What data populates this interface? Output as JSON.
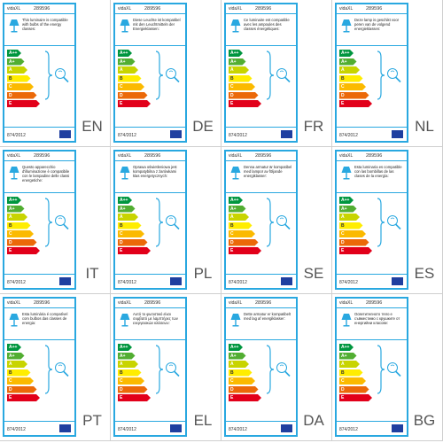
{
  "brand": "vidaXL",
  "product_code": "289596",
  "regulation": "874/2012",
  "icons": {
    "lamp": "table-lamp-icon",
    "bulb": "light-bulb-icon",
    "flag": "eu-flag-icon"
  },
  "energy_classes": [
    {
      "label": "A++",
      "color": "#00963f"
    },
    {
      "label": "A+",
      "color": "#52ae32"
    },
    {
      "label": "A",
      "color": "#c8d400"
    },
    {
      "label": "B",
      "color": "#ffed00"
    },
    {
      "label": "C",
      "color": "#fbba00"
    },
    {
      "label": "D",
      "color": "#eb6909"
    },
    {
      "label": "E",
      "color": "#e2001a"
    }
  ],
  "labels": [
    {
      "lang": "EN",
      "text": "This luminaire is compatible with bulbs of the energy classes:"
    },
    {
      "lang": "DE",
      "text": "Diese Leuchte ist kompatibel mit den Leuchtmitteln der Energieklassen:"
    },
    {
      "lang": "FR",
      "text": "Ce luminaire est compatible avec les ampoules des classes énergétiques:"
    },
    {
      "lang": "NL",
      "text": "Deze lamp is geschikt voor peren van de volgend energieklassen:"
    },
    {
      "lang": "IT",
      "text": "Questo apparecchio d'illuminazione è compatibile con le lampadine delle classi energetiche:"
    },
    {
      "lang": "PL",
      "text": "Oprawa oświetleniowa jest kompatybilna z żarówkami klas energetycznych:"
    },
    {
      "lang": "SE",
      "text": "Denna armatur är kompatibel med lampor av följande energiklasser:"
    },
    {
      "lang": "ES",
      "text": "Esta luminaria es compatible con las bombillas de las clases de la energía:"
    },
    {
      "lang": "PT",
      "text": "Esta luminária é compatível com bulbos das classes de energia:"
    },
    {
      "lang": "EL",
      "text": "Αυτό το φωτιστικό είναι συμβατό με λαμπτήρες των ενεργειακών κλάσεων:"
    },
    {
      "lang": "DA",
      "text": "Dette armatur er kompatibelt med lag af energiklasser:"
    },
    {
      "lang": "BG",
      "text": "Осветителното тяло е съвместимо с крушките от енергийни класове:"
    }
  ]
}
